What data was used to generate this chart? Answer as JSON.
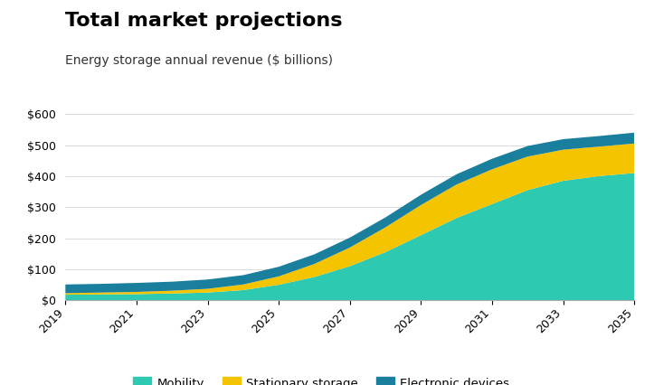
{
  "title": "Total market projections",
  "subtitle": "Energy storage annual revenue ($ billions)",
  "years": [
    2019,
    2020,
    2021,
    2022,
    2023,
    2024,
    2025,
    2026,
    2027,
    2028,
    2029,
    2030,
    2031,
    2032,
    2033,
    2034,
    2035
  ],
  "mobility": [
    18,
    19,
    20,
    22,
    25,
    33,
    50,
    75,
    110,
    155,
    210,
    265,
    310,
    355,
    385,
    400,
    410
  ],
  "stationary": [
    5,
    6,
    7,
    9,
    12,
    18,
    27,
    42,
    60,
    80,
    97,
    108,
    112,
    108,
    100,
    95,
    95
  ],
  "electronic": [
    28,
    28,
    29,
    29,
    30,
    30,
    31,
    31,
    32,
    32,
    33,
    33,
    34,
    34,
    34,
    34,
    35
  ],
  "color_mobility": "#2dc9b0",
  "color_stationary": "#f5c400",
  "color_electronic": "#1a7f9c",
  "xlim": [
    2019,
    2035
  ],
  "ylim": [
    0,
    620
  ],
  "yticks": [
    0,
    100,
    200,
    300,
    400,
    500,
    600
  ],
  "xticks": [
    2019,
    2021,
    2023,
    2025,
    2027,
    2029,
    2031,
    2033,
    2035
  ],
  "legend_labels": [
    "Mobility",
    "Stationary storage",
    "Electronic devices"
  ],
  "bg_color": "#ffffff",
  "title_fontsize": 16,
  "subtitle_fontsize": 10,
  "tick_fontsize": 9
}
